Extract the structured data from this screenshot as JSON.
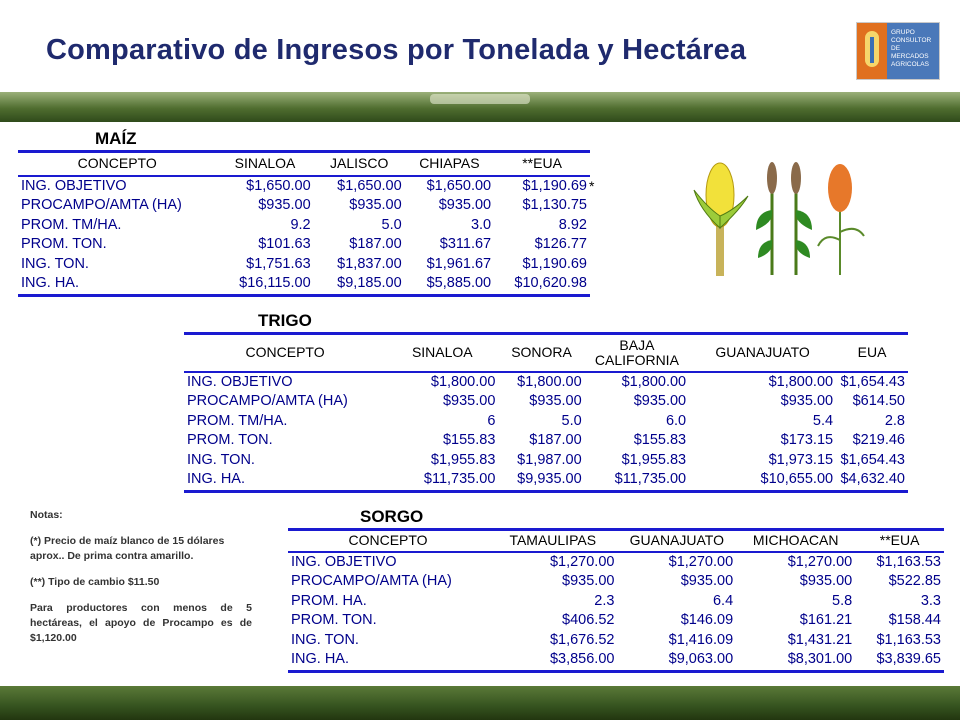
{
  "title": "Comparativo de Ingresos por Tonelada y Hectárea",
  "logo": {
    "lines": [
      "GRUPO",
      "CONSULTOR",
      "DE MERCADOS",
      "AGRICOLAS"
    ]
  },
  "maiz": {
    "section_title": "MAÍZ",
    "headers": [
      "CONCEPTO",
      "SINALOA",
      "JALISCO",
      "CHIAPAS",
      "**EUA"
    ],
    "footnote_mark": "*",
    "rows": [
      [
        "ING. OBJETIVO",
        "$1,650.00",
        "$1,650.00",
        "$1,650.00",
        "$1,190.69"
      ],
      [
        "PROCAMPO/AMTA (HA)",
        "$935.00",
        "$935.00",
        "$935.00",
        "$1,130.75"
      ],
      [
        "PROM. TM/HA.",
        "9.2",
        "5.0",
        "3.0",
        "8.92"
      ],
      [
        "PROM. TON.",
        "$101.63",
        "$187.00",
        "$311.67",
        "$126.77"
      ],
      [
        "ING. TON.",
        "$1,751.63",
        "$1,837.00",
        "$1,961.67",
        "$1,190.69"
      ],
      [
        "ING. HA.",
        "$16,115.00",
        "$9,185.00",
        "$5,885.00",
        "$10,620.98"
      ]
    ]
  },
  "trigo": {
    "section_title": "TRIGO",
    "headers": [
      "CONCEPTO",
      "SINALOA",
      "SONORA",
      "BAJA CALIFORNIA",
      "GUANAJUATO",
      "EUA"
    ],
    "rows": [
      [
        "ING. OBJETIVO",
        "$1,800.00",
        "$1,800.00",
        "$1,800.00",
        "$1,800.00",
        "$1,654.43"
      ],
      [
        "PROCAMPO/AMTA (HA)",
        "$935.00",
        "$935.00",
        "$935.00",
        "$935.00",
        "$614.50"
      ],
      [
        "PROM. TM/HA.",
        "6",
        "5.0",
        "6.0",
        "5.4",
        "2.8"
      ],
      [
        "PROM. TON.",
        "$155.83",
        "$187.00",
        "$155.83",
        "$173.15",
        "$219.46"
      ],
      [
        "ING. TON.",
        "$1,955.83",
        "$1,987.00",
        "$1,955.83",
        "$1,973.15",
        "$1,654.43"
      ],
      [
        "ING. HA.",
        "$11,735.00",
        "$9,935.00",
        "$11,735.00",
        "$10,655.00",
        "$4,632.40"
      ]
    ]
  },
  "sorgo": {
    "section_title": "SORGO",
    "headers": [
      "CONCEPTO",
      "TAMAULIPAS",
      "GUANAJUATO",
      "MICHOACAN",
      "**EUA"
    ],
    "rows": [
      [
        "ING. OBJETIVO",
        "$1,270.00",
        "$1,270.00",
        "$1,270.00",
        "$1,163.53"
      ],
      [
        "PROCAMPO/AMTA (HA)",
        "$935.00",
        "$935.00",
        "$935.00",
        "$522.85"
      ],
      [
        "PROM. HA.",
        "2.3",
        "6.4",
        "5.8",
        "3.3"
      ],
      [
        "PROM. TON.",
        "$406.52",
        "$146.09",
        "$161.21",
        "$158.44"
      ],
      [
        "ING. TON.",
        "$1,676.52",
        "$1,416.09",
        "$1,431.21",
        "$1,163.53"
      ],
      [
        "ING. HA.",
        "$3,856.00",
        "$9,063.00",
        "$8,301.00",
        "$3,839.65"
      ]
    ]
  },
  "notes": {
    "heading": "Notas:",
    "note1": "(*) Precio de maíz blanco de 15 dólares aprox.. De prima contra amarillo.",
    "note2": "(**) Tipo de cambio $11.50",
    "note3": "Para productores con menos de 5 hectáreas, el apoyo de Procampo es de $1,120.00"
  },
  "icons": [
    "corn-icon",
    "wheat-icon",
    "sorghum-icon"
  ],
  "colors": {
    "title": "#1f2a6e",
    "table_values": "#00008b",
    "table_rules": "#1a1ad0"
  }
}
